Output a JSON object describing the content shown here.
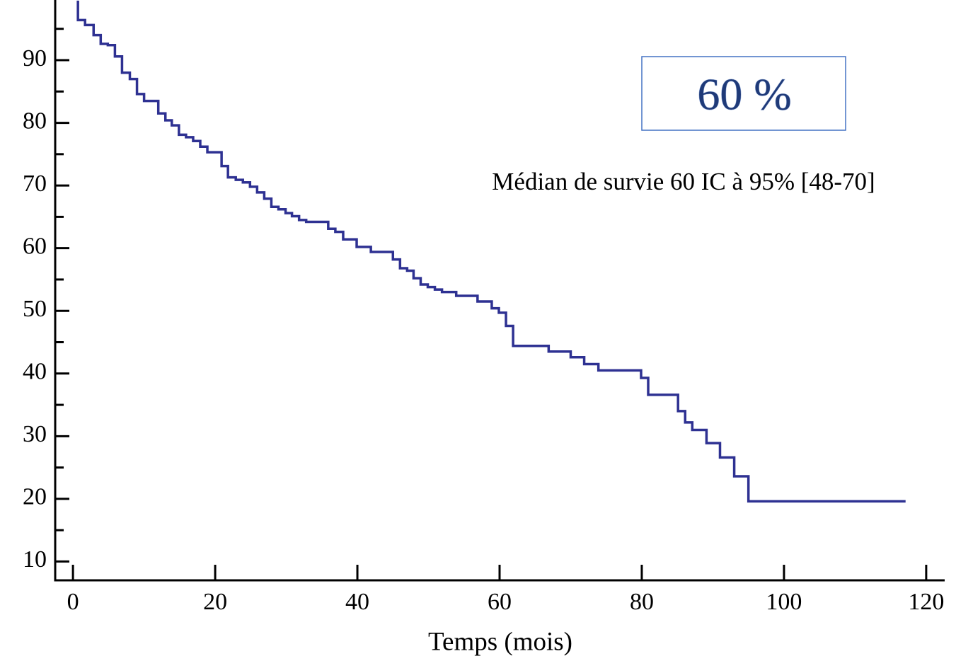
{
  "chart_data": {
    "type": "step",
    "x_label": "Temps (mois)",
    "annotations": [
      "60 %",
      "Médian de survie 60 IC à 95% [48-70]"
    ],
    "x": [
      0.7,
      0.7,
      1.7,
      2.9,
      3.9,
      4.9,
      5.9,
      6.9,
      8.0,
      9.0,
      10.0,
      12.0,
      13.0,
      13.9,
      14.9,
      15.9,
      16.9,
      17.9,
      18.9,
      20.9,
      21.8,
      22.9,
      23.9,
      24.9,
      25.9,
      26.9,
      27.9,
      28.9,
      29.9,
      30.8,
      31.8,
      32.8,
      35.9,
      36.9,
      38.0,
      39.9,
      41.9,
      45.0,
      46.0,
      47.0,
      47.9,
      48.9,
      49.9,
      50.9,
      51.9,
      53.9,
      56.9,
      58.9,
      59.9,
      60.9,
      61.9,
      66.9,
      70.0,
      71.9,
      73.9,
      79.9,
      80.9,
      85.1,
      86.1,
      87.1,
      89.1,
      91.0,
      93.0,
      95.0,
      117.1
    ],
    "values": [
      99.5,
      96.4,
      95.6,
      94.0,
      92.6,
      92.4,
      90.6,
      88.0,
      87.0,
      84.6,
      83.5,
      81.5,
      80.4,
      79.6,
      78.1,
      77.7,
      77.1,
      76.2,
      75.3,
      73.1,
      71.3,
      70.9,
      70.5,
      69.8,
      68.9,
      67.9,
      66.6,
      66.2,
      65.6,
      65.1,
      64.5,
      64.2,
      63.1,
      62.6,
      61.4,
      60.2,
      59.4,
      58.2,
      56.8,
      56.4,
      55.2,
      54.2,
      53.8,
      53.4,
      53.0,
      52.4,
      51.5,
      50.4,
      49.7,
      47.6,
      44.4,
      43.5,
      42.6,
      41.5,
      40.5,
      39.3,
      36.6,
      34.0,
      32.2,
      31.0,
      28.9,
      26.6,
      23.6,
      19.6,
      19.6
    ],
    "color": "#2e3192",
    "xlim": [
      -2.5,
      122.6
    ],
    "xticks": [
      0,
      20,
      40,
      60,
      80,
      100,
      120
    ],
    "ylim": [
      7,
      99.6
    ],
    "yticks": [
      10,
      20,
      30,
      40,
      50,
      60,
      70,
      80,
      90
    ],
    "yminorticks": [
      15,
      25,
      35,
      45,
      55,
      65,
      75,
      85,
      95
    ]
  }
}
